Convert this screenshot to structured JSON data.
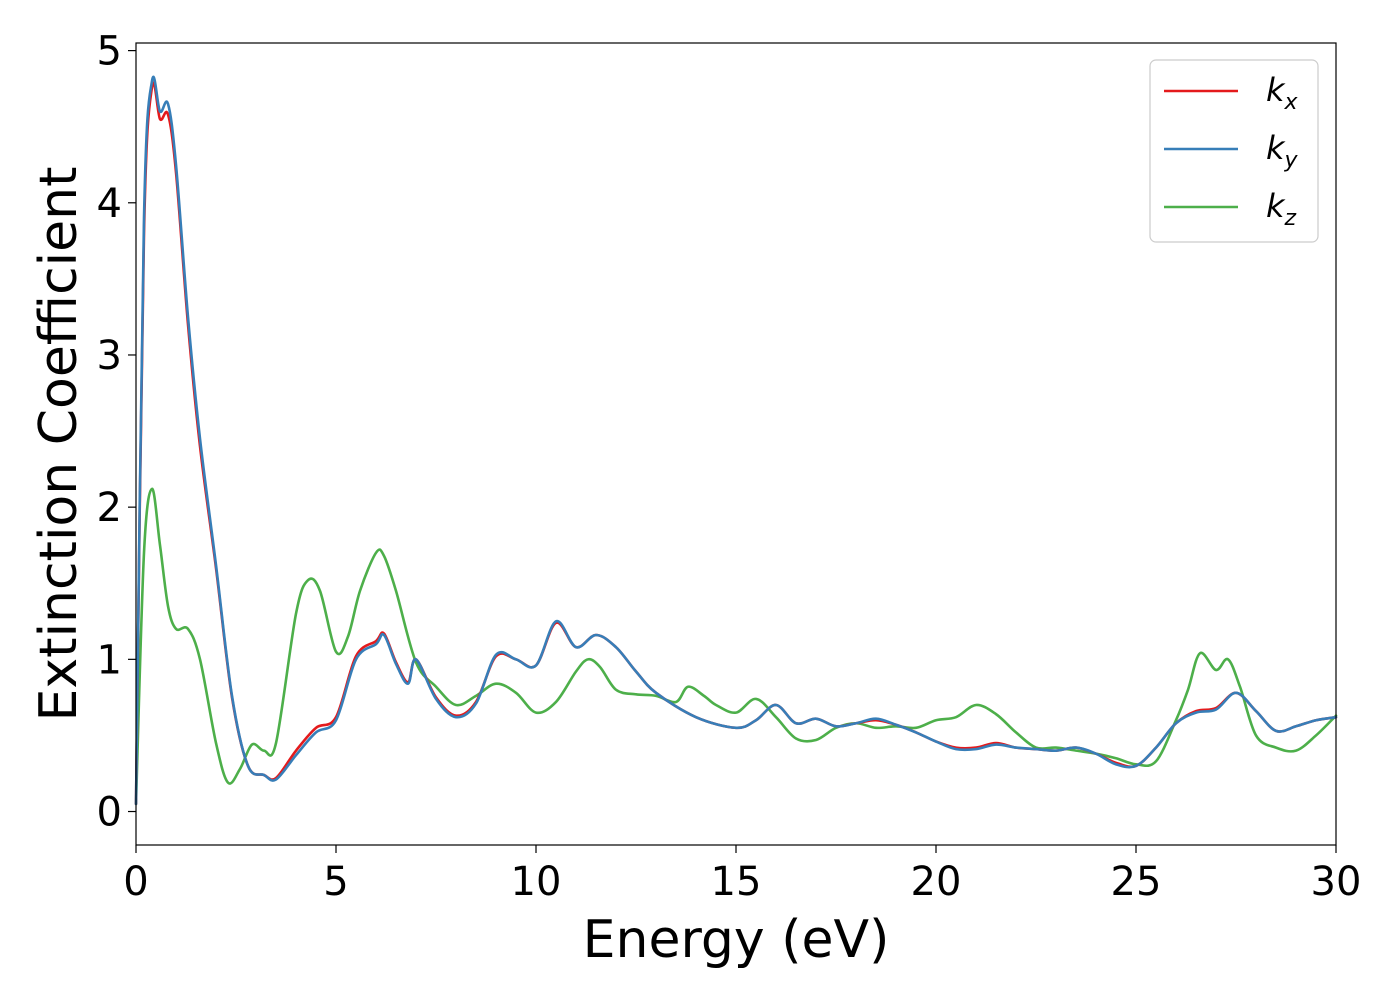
{
  "chart_data": {
    "type": "line",
    "title": "",
    "xlabel": "Energy (eV)",
    "ylabel": "Extinction Coefficient",
    "xlim": [
      0,
      30
    ],
    "ylim": [
      -0.22,
      5.05
    ],
    "xticks": [
      0,
      5,
      10,
      15,
      20,
      25,
      30
    ],
    "yticks": [
      0,
      1,
      2,
      3,
      4,
      5
    ],
    "grid": false,
    "legend_position": "top-right",
    "series": [
      {
        "name": "k",
        "subscript": "x",
        "color": "#e41a1c",
        "x": [
          0,
          0.2,
          0.4,
          0.6,
          0.8,
          1.0,
          1.3,
          1.6,
          2.0,
          2.4,
          2.8,
          3.2,
          3.5,
          4.0,
          4.5,
          5.0,
          5.5,
          6.0,
          6.2,
          6.5,
          6.8,
          7.0,
          7.5,
          8.0,
          8.5,
          9.0,
          9.5,
          10.0,
          10.5,
          11.0,
          11.5,
          12.0,
          12.5,
          13.0,
          14.0,
          15.0,
          15.5,
          16.0,
          16.5,
          17.0,
          17.5,
          18.0,
          18.5,
          19.0,
          19.5,
          20.0,
          20.5,
          21.0,
          21.5,
          22.0,
          22.5,
          23.0,
          23.5,
          24.0,
          24.5,
          25.0,
          25.5,
          26.0,
          26.5,
          27.0,
          27.5,
          28.0,
          28.5,
          29.0,
          29.5,
          30.0
        ],
        "y": [
          0.05,
          3.8,
          4.76,
          4.55,
          4.58,
          4.2,
          3.2,
          2.4,
          1.6,
          0.75,
          0.3,
          0.24,
          0.22,
          0.4,
          0.55,
          0.62,
          1.02,
          1.12,
          1.17,
          0.98,
          0.85,
          1.0,
          0.75,
          0.63,
          0.72,
          1.02,
          1.0,
          0.96,
          1.24,
          1.08,
          1.16,
          1.08,
          0.92,
          0.78,
          0.62,
          0.55,
          0.6,
          0.7,
          0.58,
          0.61,
          0.56,
          0.58,
          0.6,
          0.57,
          0.52,
          0.46,
          0.42,
          0.42,
          0.45,
          0.42,
          0.41,
          0.4,
          0.42,
          0.38,
          0.32,
          0.3,
          0.42,
          0.58,
          0.66,
          0.68,
          0.78,
          0.66,
          0.53,
          0.56,
          0.6,
          0.62
        ]
      },
      {
        "name": "k",
        "subscript": "y",
        "color": "#377eb8",
        "x": [
          0,
          0.2,
          0.4,
          0.6,
          0.8,
          1.0,
          1.3,
          1.6,
          2.0,
          2.4,
          2.8,
          3.2,
          3.5,
          4.0,
          4.5,
          5.0,
          5.5,
          6.0,
          6.2,
          6.5,
          6.8,
          7.0,
          7.5,
          8.0,
          8.5,
          9.0,
          9.5,
          10.0,
          10.5,
          11.0,
          11.5,
          12.0,
          12.5,
          13.0,
          14.0,
          15.0,
          15.5,
          16.0,
          16.5,
          17.0,
          17.5,
          18.0,
          18.5,
          19.0,
          19.5,
          20.0,
          20.5,
          21.0,
          21.5,
          22.0,
          22.5,
          23.0,
          23.5,
          24.0,
          24.5,
          25.0,
          25.5,
          26.0,
          26.5,
          27.0,
          27.5,
          28.0,
          28.5,
          29.0,
          29.5,
          30.0
        ],
        "y": [
          0.05,
          3.9,
          4.8,
          4.6,
          4.65,
          4.25,
          3.25,
          2.45,
          1.62,
          0.76,
          0.3,
          0.24,
          0.21,
          0.37,
          0.52,
          0.6,
          1.0,
          1.1,
          1.16,
          0.97,
          0.84,
          1.0,
          0.74,
          0.62,
          0.71,
          1.03,
          1.0,
          0.96,
          1.25,
          1.08,
          1.16,
          1.08,
          0.92,
          0.78,
          0.62,
          0.55,
          0.6,
          0.7,
          0.58,
          0.61,
          0.56,
          0.58,
          0.61,
          0.57,
          0.52,
          0.46,
          0.41,
          0.41,
          0.44,
          0.42,
          0.41,
          0.4,
          0.42,
          0.38,
          0.31,
          0.3,
          0.42,
          0.58,
          0.65,
          0.67,
          0.78,
          0.66,
          0.53,
          0.56,
          0.6,
          0.62
        ]
      },
      {
        "name": "k",
        "subscript": "z",
        "color": "#4daf4a",
        "x": [
          0,
          0.2,
          0.4,
          0.6,
          0.8,
          1.0,
          1.3,
          1.6,
          2.0,
          2.3,
          2.6,
          2.9,
          3.2,
          3.5,
          4.0,
          4.3,
          4.6,
          5.0,
          5.3,
          5.6,
          6.0,
          6.2,
          6.5,
          7.0,
          7.5,
          8.0,
          8.5,
          9.0,
          9.5,
          10.0,
          10.5,
          11.0,
          11.3,
          11.6,
          12.0,
          12.5,
          13.0,
          13.5,
          13.8,
          14.2,
          14.5,
          15.0,
          15.5,
          16.0,
          16.5,
          17.0,
          17.5,
          18.0,
          18.5,
          19.0,
          19.5,
          20.0,
          20.5,
          21.0,
          21.5,
          22.0,
          22.5,
          23.0,
          23.5,
          24.0,
          24.5,
          25.0,
          25.5,
          26.0,
          26.3,
          26.6,
          27.0,
          27.3,
          27.6,
          28.0,
          28.5,
          29.0,
          29.5,
          30.0
        ],
        "y": [
          0.05,
          1.7,
          2.12,
          1.75,
          1.35,
          1.2,
          1.2,
          1.0,
          0.45,
          0.19,
          0.28,
          0.44,
          0.4,
          0.45,
          1.3,
          1.52,
          1.45,
          1.05,
          1.15,
          1.45,
          1.7,
          1.68,
          1.45,
          0.98,
          0.82,
          0.7,
          0.76,
          0.84,
          0.78,
          0.65,
          0.72,
          0.92,
          1.0,
          0.95,
          0.8,
          0.77,
          0.76,
          0.72,
          0.82,
          0.76,
          0.7,
          0.65,
          0.74,
          0.62,
          0.48,
          0.47,
          0.55,
          0.58,
          0.55,
          0.56,
          0.55,
          0.6,
          0.62,
          0.7,
          0.64,
          0.52,
          0.42,
          0.42,
          0.4,
          0.38,
          0.35,
          0.31,
          0.33,
          0.6,
          0.8,
          1.04,
          0.93,
          1.0,
          0.82,
          0.5,
          0.42,
          0.4,
          0.5,
          0.63
        ]
      }
    ]
  }
}
